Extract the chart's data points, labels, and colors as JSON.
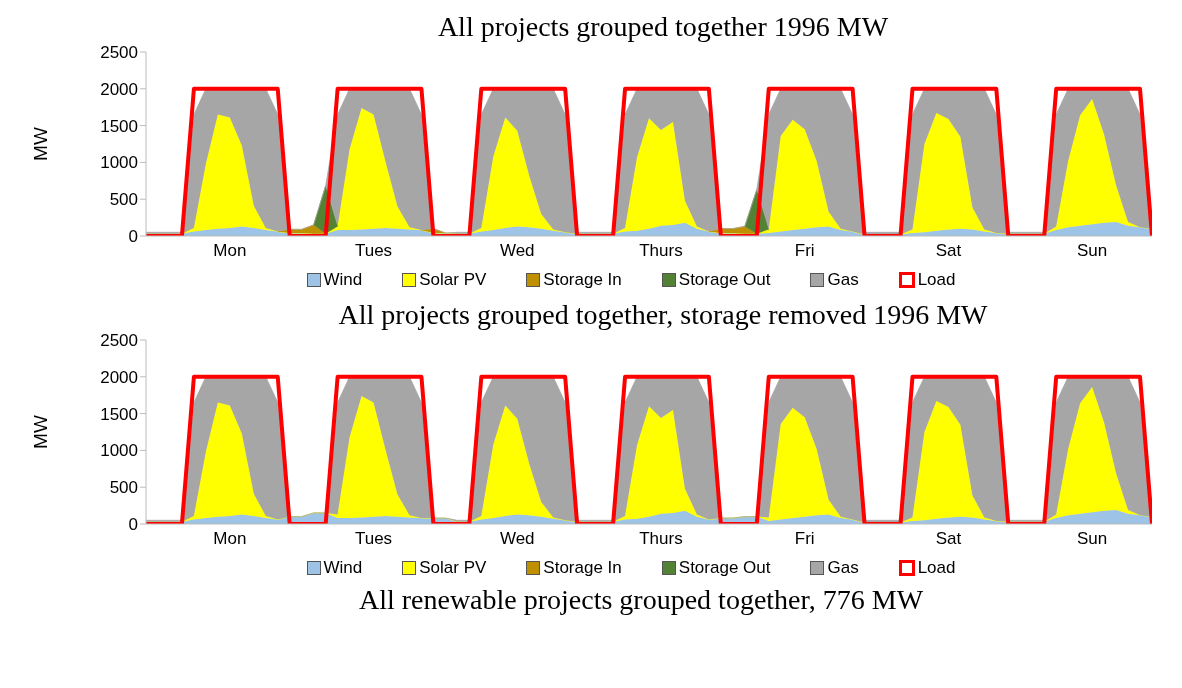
{
  "chart_data": [
    {
      "type": "area",
      "title": "All projects grouped together 1996 MW",
      "ylabel": "MW",
      "stacked": true,
      "legend": "bottom",
      "grid": false,
      "categories": [
        null,
        null,
        null,
        null,
        null,
        null,
        null,
        "Mon",
        null,
        null,
        null,
        null,
        null,
        null,
        null,
        null,
        null,
        null,
        null,
        "Tues",
        null,
        null,
        null,
        null,
        null,
        null,
        null,
        null,
        null,
        null,
        null,
        "Wed",
        null,
        null,
        null,
        null,
        null,
        null,
        null,
        null,
        null,
        null,
        null,
        "Thurs",
        null,
        null,
        null,
        null,
        null,
        null,
        null,
        null,
        null,
        null,
        null,
        "Fri",
        null,
        null,
        null,
        null,
        null,
        null,
        null,
        null,
        null,
        null,
        null,
        "Sat",
        null,
        null,
        null,
        null,
        null,
        null,
        null,
        null,
        null,
        null,
        null,
        "Sun",
        null,
        null,
        null,
        null,
        null
      ],
      "ylim": [
        0,
        2500
      ],
      "yticks": [
        0,
        500,
        1000,
        1500,
        2000,
        2500
      ],
      "series": [
        {
          "name": "Wind",
          "color": "#9dc3e6",
          "values": [
            30,
            30,
            30,
            30,
            60,
            80,
            100,
            110,
            130,
            110,
            80,
            60,
            40,
            40,
            30,
            30,
            80,
            80,
            90,
            100,
            110,
            100,
            90,
            80,
            40,
            40,
            30,
            30,
            60,
            80,
            110,
            130,
            120,
            100,
            70,
            50,
            30,
            30,
            30,
            30,
            60,
            70,
            100,
            140,
            150,
            180,
            100,
            60,
            40,
            40,
            30,
            30,
            40,
            60,
            80,
            100,
            120,
            130,
            80,
            60,
            20,
            20,
            20,
            20,
            40,
            50,
            70,
            90,
            100,
            90,
            60,
            40,
            30,
            30,
            30,
            30,
            80,
            120,
            140,
            160,
            180,
            190,
            140,
            120,
            100
          ]
        },
        {
          "name": "Solar PV",
          "color": "#ffff00",
          "values": [
            0,
            0,
            0,
            0,
            50,
            900,
            1550,
            1500,
            1100,
            300,
            30,
            0,
            0,
            0,
            0,
            0,
            50,
            1100,
            1650,
            1550,
            900,
            300,
            30,
            0,
            0,
            0,
            0,
            0,
            50,
            1000,
            1500,
            1300,
            700,
            200,
            20,
            0,
            0,
            0,
            0,
            0,
            50,
            1000,
            1500,
            1300,
            1400,
            300,
            30,
            0,
            0,
            0,
            0,
            0,
            50,
            1300,
            1500,
            1350,
            900,
            200,
            20,
            0,
            0,
            0,
            0,
            0,
            50,
            1200,
            1600,
            1500,
            1250,
            300,
            30,
            0,
            0,
            0,
            0,
            0,
            50,
            900,
            1500,
            1700,
            1200,
            500,
            50,
            0,
            0
          ]
        },
        {
          "name": "Storage In",
          "color": "#bf9000",
          "values": [
            null,
            null,
            null,
            null,
            null,
            null,
            null,
            null,
            null,
            null,
            null,
            0,
            50,
            50,
            120,
            0,
            null,
            null,
            null,
            null,
            null,
            null,
            null,
            0,
            60,
            0,
            null,
            null,
            null,
            null,
            null,
            null,
            null,
            null,
            null,
            null,
            null,
            null,
            null,
            null,
            null,
            null,
            null,
            null,
            null,
            null,
            null,
            0,
            60,
            60,
            100,
            0,
            null,
            null,
            null,
            null,
            null,
            null,
            null,
            null,
            null,
            null,
            null,
            null,
            null,
            null,
            null,
            null,
            null,
            null,
            null,
            null,
            null,
            null,
            null,
            null,
            null,
            null,
            null,
            null,
            null,
            null,
            null,
            null,
            null
          ]
        },
        {
          "name": "Storage Out",
          "color": "#548235",
          "values": [
            null,
            null,
            null,
            null,
            null,
            null,
            null,
            null,
            null,
            null,
            null,
            null,
            null,
            null,
            0,
            650,
            0,
            null,
            null,
            null,
            null,
            null,
            null,
            null,
            null,
            null,
            null,
            null,
            null,
            null,
            null,
            null,
            null,
            null,
            null,
            null,
            null,
            null,
            null,
            null,
            null,
            null,
            null,
            null,
            null,
            null,
            null,
            null,
            null,
            null,
            0,
            600,
            0,
            null,
            null,
            null,
            null,
            null,
            null,
            null,
            null,
            null,
            null,
            null,
            null,
            null,
            null,
            null,
            null,
            null,
            null,
            null,
            null,
            null,
            null,
            null,
            null,
            null,
            null,
            null,
            null,
            null,
            null,
            null,
            null
          ]
        },
        {
          "name": "Gas",
          "color": "#a6a6a6",
          "values": [
            20,
            20,
            20,
            20,
            1540,
            1020,
            350,
            390,
            770,
            1590,
            1890,
            1590,
            0,
            0,
            0,
            0,
            1520,
            820,
            260,
            350,
            990,
            1600,
            1880,
            1570,
            0,
            0,
            20,
            20,
            1540,
            920,
            390,
            570,
            1180,
            1700,
            1910,
            1600,
            20,
            20,
            20,
            20,
            1540,
            930,
            400,
            560,
            450,
            1520,
            1870,
            1590,
            0,
            0,
            0,
            0,
            1560,
            640,
            420,
            550,
            980,
            1670,
            1900,
            1590,
            30,
            30,
            30,
            30,
            1560,
            750,
            330,
            410,
            650,
            1610,
            1910,
            1610,
            20,
            20,
            20,
            20,
            1520,
            980,
            360,
            140,
            620,
            1310,
            1810,
            1530,
            20
          ]
        },
        {
          "name": "Load",
          "type": "line",
          "color": "#ff0000",
          "values": [
            0,
            0,
            0,
            0,
            2000,
            2000,
            2000,
            2000,
            2000,
            2000,
            2000,
            2000,
            0,
            0,
            0,
            0,
            2000,
            2000,
            2000,
            2000,
            2000,
            2000,
            2000,
            2000,
            0,
            0,
            0,
            0,
            2000,
            2000,
            2000,
            2000,
            2000,
            2000,
            2000,
            2000,
            0,
            0,
            0,
            0,
            2000,
            2000,
            2000,
            2000,
            2000,
            2000,
            2000,
            2000,
            0,
            0,
            0,
            0,
            2000,
            2000,
            2000,
            2000,
            2000,
            2000,
            2000,
            2000,
            0,
            0,
            0,
            0,
            2000,
            2000,
            2000,
            2000,
            2000,
            2000,
            2000,
            2000,
            0,
            0,
            0,
            0,
            2000,
            2000,
            2000,
            2000,
            2000,
            2000,
            2000,
            2000,
            0
          ]
        }
      ]
    },
    {
      "type": "area",
      "title": "All projects grouped together, storage removed 1996 MW",
      "ylabel": "MW",
      "stacked": true,
      "legend": "bottom",
      "grid": false,
      "categories": [
        null,
        null,
        null,
        null,
        null,
        null,
        null,
        "Mon",
        null,
        null,
        null,
        null,
        null,
        null,
        null,
        null,
        null,
        null,
        null,
        "Tues",
        null,
        null,
        null,
        null,
        null,
        null,
        null,
        null,
        null,
        null,
        null,
        "Wed",
        null,
        null,
        null,
        null,
        null,
        null,
        null,
        null,
        null,
        null,
        null,
        "Thurs",
        null,
        null,
        null,
        null,
        null,
        null,
        null,
        null,
        null,
        null,
        null,
        "Fri",
        null,
        null,
        null,
        null,
        null,
        null,
        null,
        null,
        null,
        null,
        null,
        "Sat",
        null,
        null,
        null,
        null,
        null,
        null,
        null,
        null,
        null,
        null,
        null,
        "Sun",
        null,
        null,
        null,
        null,
        null
      ],
      "ylim": [
        0,
        2500
      ],
      "yticks": [
        0,
        500,
        1000,
        1500,
        2000,
        2500
      ],
      "series": [
        {
          "name": "Wind",
          "color": "#9dc3e6",
          "values": [
            30,
            30,
            30,
            30,
            60,
            80,
            100,
            110,
            130,
            110,
            80,
            60,
            100,
            100,
            150,
            150,
            80,
            80,
            90,
            100,
            110,
            100,
            90,
            80,
            80,
            80,
            30,
            30,
            60,
            80,
            110,
            130,
            120,
            100,
            70,
            50,
            30,
            30,
            30,
            30,
            60,
            70,
            100,
            140,
            150,
            180,
            100,
            60,
            80,
            80,
            100,
            100,
            40,
            60,
            80,
            100,
            120,
            130,
            80,
            60,
            20,
            20,
            20,
            20,
            40,
            50,
            70,
            90,
            100,
            90,
            60,
            40,
            30,
            30,
            30,
            30,
            80,
            120,
            140,
            160,
            180,
            190,
            140,
            120,
            100
          ]
        },
        {
          "name": "Solar PV",
          "color": "#ffff00",
          "values": [
            0,
            0,
            0,
            0,
            50,
            900,
            1550,
            1500,
            1100,
            300,
            30,
            0,
            0,
            0,
            0,
            0,
            50,
            1100,
            1650,
            1550,
            900,
            300,
            30,
            0,
            0,
            0,
            0,
            0,
            50,
            1000,
            1500,
            1300,
            700,
            200,
            20,
            0,
            0,
            0,
            0,
            0,
            50,
            1000,
            1500,
            1300,
            1400,
            300,
            30,
            0,
            0,
            0,
            0,
            0,
            50,
            1300,
            1500,
            1350,
            900,
            200,
            20,
            0,
            0,
            0,
            0,
            0,
            50,
            1200,
            1600,
            1500,
            1250,
            300,
            30,
            0,
            0,
            0,
            0,
            0,
            50,
            900,
            1500,
            1700,
            1200,
            500,
            50,
            0,
            0
          ]
        },
        {
          "name": "Storage In",
          "color": "#bf9000",
          "values": [
            null,
            null,
            null,
            null,
            null,
            null,
            null,
            null,
            null,
            null,
            null,
            null,
            null,
            null,
            null,
            null,
            null,
            null,
            null,
            null,
            null,
            null,
            null,
            null,
            null,
            null,
            null,
            null,
            null,
            null,
            null,
            null,
            null,
            null,
            null,
            null,
            null,
            null,
            null,
            null,
            null,
            null,
            null,
            null,
            null,
            null,
            null,
            null,
            null,
            null,
            null,
            null,
            null,
            null,
            null,
            null,
            null,
            null,
            null,
            null,
            null,
            null,
            null,
            null,
            null,
            null,
            null,
            null,
            null,
            null,
            null,
            null,
            null,
            null,
            null,
            null,
            null,
            null,
            null,
            null,
            null,
            null,
            null,
            null,
            null
          ]
        },
        {
          "name": "Storage Out",
          "color": "#548235",
          "values": [
            null,
            null,
            null,
            null,
            null,
            null,
            null,
            null,
            null,
            null,
            null,
            null,
            null,
            null,
            null,
            null,
            null,
            null,
            null,
            null,
            null,
            null,
            null,
            null,
            null,
            null,
            null,
            null,
            null,
            null,
            null,
            null,
            null,
            null,
            null,
            null,
            null,
            null,
            null,
            null,
            null,
            null,
            null,
            null,
            null,
            null,
            null,
            null,
            null,
            null,
            null,
            null,
            null,
            null,
            null,
            null,
            null,
            null,
            null,
            null,
            null,
            null,
            null,
            null,
            null,
            null,
            null,
            null,
            null,
            null,
            null,
            null,
            null,
            null,
            null,
            null,
            null,
            null,
            null,
            null,
            null,
            null,
            null,
            null,
            null
          ]
        },
        {
          "name": "Gas",
          "color": "#a6a6a6",
          "values": [
            20,
            20,
            20,
            20,
            1540,
            1020,
            350,
            390,
            770,
            1590,
            1890,
            1590,
            0,
            0,
            0,
            0,
            1520,
            820,
            260,
            350,
            990,
            1600,
            1880,
            1570,
            0,
            0,
            20,
            20,
            1540,
            920,
            390,
            570,
            1180,
            1700,
            1910,
            1600,
            20,
            20,
            20,
            20,
            1540,
            930,
            400,
            560,
            450,
            1520,
            1870,
            1590,
            0,
            0,
            0,
            0,
            1560,
            640,
            420,
            550,
            980,
            1670,
            1900,
            1590,
            30,
            30,
            30,
            30,
            1560,
            750,
            330,
            410,
            650,
            1610,
            1910,
            1610,
            20,
            20,
            20,
            20,
            1520,
            980,
            360,
            140,
            620,
            1310,
            1810,
            1530,
            20
          ]
        },
        {
          "name": "Load",
          "type": "line",
          "color": "#ff0000",
          "values": [
            0,
            0,
            0,
            0,
            2000,
            2000,
            2000,
            2000,
            2000,
            2000,
            2000,
            2000,
            0,
            0,
            0,
            0,
            2000,
            2000,
            2000,
            2000,
            2000,
            2000,
            2000,
            2000,
            0,
            0,
            0,
            0,
            2000,
            2000,
            2000,
            2000,
            2000,
            2000,
            2000,
            2000,
            0,
            0,
            0,
            0,
            2000,
            2000,
            2000,
            2000,
            2000,
            2000,
            2000,
            2000,
            0,
            0,
            0,
            0,
            2000,
            2000,
            2000,
            2000,
            2000,
            2000,
            2000,
            2000,
            0,
            0,
            0,
            0,
            2000,
            2000,
            2000,
            2000,
            2000,
            2000,
            2000,
            2000,
            0,
            0,
            0,
            0,
            2000,
            2000,
            2000,
            2000,
            2000,
            2000,
            2000,
            2000,
            0
          ]
        }
      ]
    },
    {
      "type": "other",
      "title": "All renewable projects grouped together, 776 MW"
    }
  ]
}
